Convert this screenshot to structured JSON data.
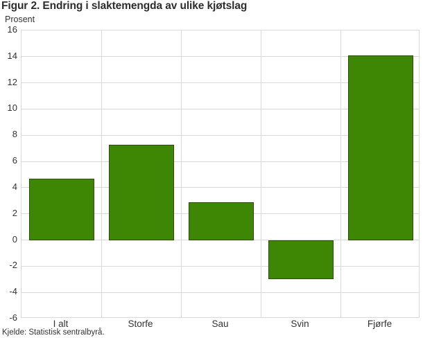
{
  "title": "Figur 2. Endring i slaktemengda av ulike kjøtslag",
  "subtitle": "Prosent",
  "source": "Kjelde: Statistisk sentralbyrå.",
  "colors": {
    "bar_fill": "#3d8705",
    "bar_border": "#2a4c08",
    "grid": "#d9d9d9",
    "text": "#333333"
  },
  "chart_data": {
    "type": "bar",
    "categories": [
      "I alt",
      "Storfe",
      "Sau",
      "Svin",
      "Fjørfe"
    ],
    "values": [
      4.7,
      7.3,
      2.9,
      -3,
      14.1
    ],
    "title": "Figur 2. Endring i slaktemengda av ulike kjøtslag",
    "xlabel": "",
    "ylabel": "Prosent",
    "ylim": [
      -6,
      16
    ],
    "ytick_step": 2,
    "grid": true,
    "legend": false,
    "bar_width_ratio": 0.82
  }
}
